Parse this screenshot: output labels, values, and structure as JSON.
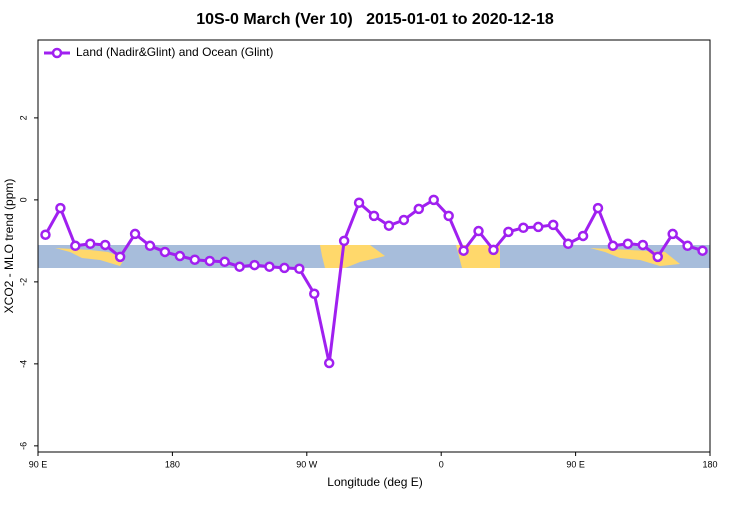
{
  "chart_data": {
    "type": "line",
    "title": "10S-0 March (Ver 10)   2015-01-01 to 2020-12-18",
    "xlabel": "Longitude (deg E)",
    "ylabel": "XCO2 - MLO trend (ppm)",
    "x": [
      95,
      105,
      115,
      125,
      135,
      145,
      155,
      165,
      175,
      185,
      195,
      205,
      215,
      225,
      235,
      245,
      255,
      265,
      275,
      285,
      295,
      305,
      315,
      325,
      335,
      345,
      355,
      365,
      375,
      385,
      395,
      405,
      415,
      425,
      435,
      445,
      455,
      465,
      475,
      485,
      495,
      505,
      515,
      525,
      535
    ],
    "series": [
      {
        "name": "Land (Nadir&Glint) and Ocean (Glint)",
        "color": "#a020f0",
        "values": [
          -0.85,
          -0.2,
          -1.12,
          -1.07,
          -1.1,
          -1.39,
          -0.83,
          -1.12,
          -1.27,
          -1.37,
          -1.46,
          -1.49,
          -1.51,
          -1.63,
          -1.59,
          -1.63,
          -1.66,
          -1.68,
          -2.29,
          -3.98,
          -1.0,
          -0.07,
          -0.39,
          -0.63,
          -0.49,
          -0.22,
          0.0,
          -0.39,
          -1.24,
          -0.76,
          -1.22,
          -0.78,
          -0.68,
          -0.66,
          -0.61,
          -1.07,
          -0.88,
          -0.2,
          -1.12,
          -1.07,
          -1.1,
          -1.39,
          -0.83,
          -1.12,
          -1.24
        ]
      }
    ],
    "xlim": [
      90,
      540
    ],
    "xticks": [
      {
        "value": 90,
        "label": "90 E"
      },
      {
        "value": 180,
        "label": "180"
      },
      {
        "value": 270,
        "label": "90 W"
      },
      {
        "value": 360,
        "label": "0"
      },
      {
        "value": 450,
        "label": "90 E"
      },
      {
        "value": 540,
        "label": "180"
      }
    ],
    "ylim": [
      -6.15,
      3.9
    ],
    "yticks": [
      -6,
      -4,
      -2,
      0,
      2
    ],
    "legend": "top-left"
  }
}
